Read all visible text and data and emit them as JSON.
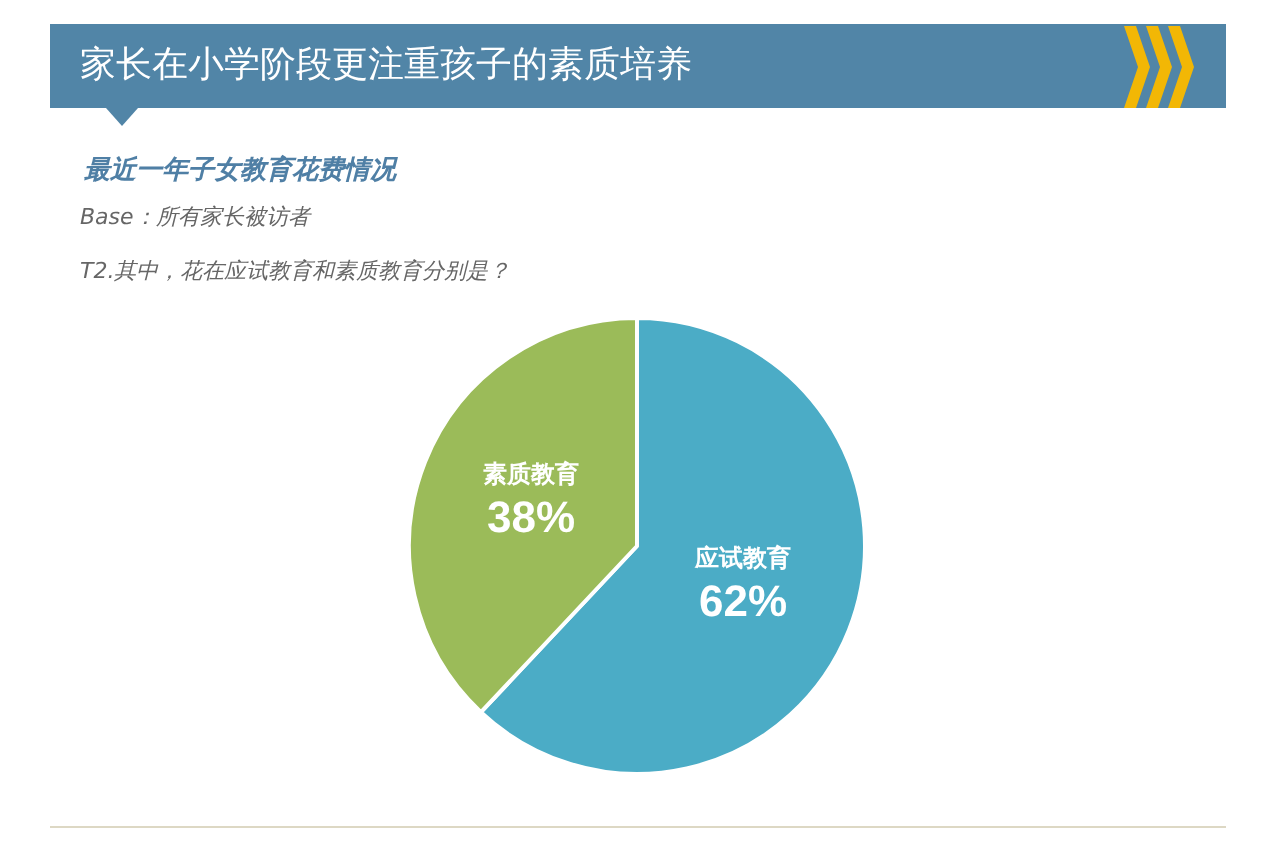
{
  "chart_data": {
    "type": "pie",
    "title": "家长在小学阶段更注重孩子的素质培养",
    "subtitle": "最近一年子女教育花费情况",
    "annotations": [
      "Base：所有家长被访者",
      "T2.其中，花在应试教育和素质教育分别是？"
    ],
    "categories": [
      "应试教育",
      "素质教育"
    ],
    "values": [
      62,
      38
    ],
    "colors": [
      "#4bacc6",
      "#9bbb59"
    ],
    "value_labels": [
      "62%",
      "38%"
    ],
    "legend": false
  }
}
